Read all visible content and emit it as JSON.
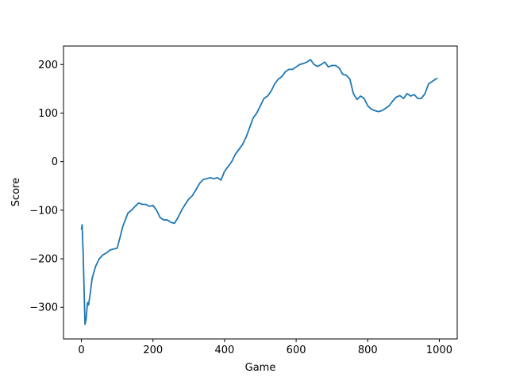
{
  "chart_data": {
    "type": "line",
    "xlabel": "Game",
    "ylabel": "Score",
    "x": [
      0,
      2,
      5,
      10,
      13,
      17,
      20,
      25,
      30,
      40,
      50,
      60,
      70,
      80,
      90,
      100,
      110,
      115,
      120,
      130,
      140,
      150,
      160,
      170,
      180,
      190,
      200,
      210,
      220,
      230,
      240,
      250,
      260,
      270,
      280,
      290,
      300,
      310,
      320,
      330,
      340,
      350,
      360,
      370,
      380,
      390,
      400,
      410,
      420,
      430,
      440,
      450,
      460,
      470,
      480,
      490,
      500,
      510,
      520,
      530,
      540,
      550,
      560,
      570,
      580,
      590,
      600,
      610,
      620,
      630,
      640,
      650,
      660,
      670,
      680,
      690,
      700,
      710,
      720,
      730,
      740,
      750,
      760,
      770,
      780,
      790,
      800,
      810,
      820,
      830,
      840,
      850,
      860,
      870,
      880,
      890,
      900,
      910,
      920,
      930,
      940,
      950,
      960,
      970,
      980,
      990,
      995
    ],
    "series": [
      {
        "color": "#1f77b4",
        "values": [
          -140,
          -130,
          -190,
          -335,
          -325,
          -290,
          -295,
          -270,
          -240,
          -215,
          -200,
          -192,
          -188,
          -182,
          -180,
          -178,
          -150,
          -135,
          -125,
          -106,
          -100,
          -92,
          -85,
          -88,
          -88,
          -92,
          -90,
          -100,
          -115,
          -120,
          -120,
          -125,
          -127,
          -115,
          -100,
          -88,
          -77,
          -70,
          -58,
          -45,
          -37,
          -35,
          -33,
          -35,
          -33,
          -38,
          -20,
          -10,
          0,
          15,
          25,
          35,
          50,
          70,
          90,
          100,
          115,
          130,
          135,
          145,
          160,
          170,
          175,
          185,
          190,
          190,
          195,
          200,
          202,
          205,
          210,
          200,
          196,
          200,
          205,
          195,
          198,
          198,
          193,
          180,
          178,
          170,
          140,
          128,
          135,
          130,
          115,
          108,
          105,
          103,
          105,
          110,
          115,
          125,
          133,
          136,
          130,
          140,
          135,
          138,
          130,
          130,
          140,
          160,
          165,
          170,
          172
        ]
      }
    ],
    "xlim": [
      -50,
      1050
    ],
    "ylim": [
      -365,
      238
    ],
    "xticks": [
      0,
      200,
      400,
      600,
      800,
      1000
    ],
    "yticks": [
      {
        "value": -300,
        "label": "−300"
      },
      {
        "value": -200,
        "label": "−200"
      },
      {
        "value": -100,
        "label": "−100"
      },
      0,
      100,
      200
    ]
  }
}
